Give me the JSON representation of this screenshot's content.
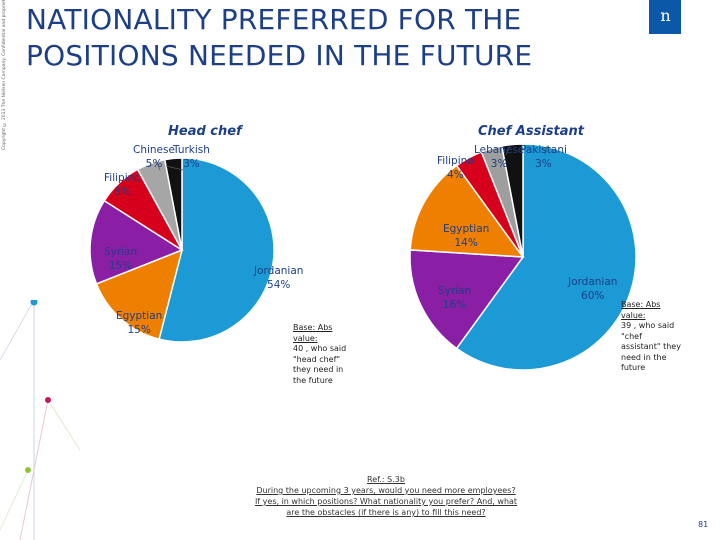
{
  "copyright": "Copyright © 2013 The Nielsen Company. Confidential and proprietary.",
  "title": {
    "line1": "NATIONALITY PREFERRED FOR THE",
    "line2": "POSITIONS NEEDED IN THE FUTURE"
  },
  "logo": {
    "text": "n"
  },
  "colors": {
    "Jordanian": "#1b9ad6",
    "Egyptian": "#ee7f00",
    "Syrian": "#8a1fa6",
    "Filipino": "#d6001c",
    "Chinese": "#a6a6a6",
    "Turkish": "#111111",
    "Lebanese": "#9e9e9e",
    "Pakistani": "#111111"
  },
  "chart_data": [
    {
      "type": "pie",
      "title": "Head chef",
      "categories": [
        "Jordanian",
        "Egyptian",
        "Syrian",
        "Filipino",
        "Chinese",
        "Turkish"
      ],
      "values": [
        54,
        15,
        15,
        8,
        5,
        3
      ],
      "labels": [
        "Jordanian 54%",
        "Egyptian 15%",
        "Syrian 15%",
        "Filipino 8%",
        "Chinese 5%",
        "Turkish 3%"
      ]
    },
    {
      "type": "pie",
      "title": "Chef Assistant",
      "categories": [
        "Jordanian",
        "Syrian",
        "Egyptian",
        "Filipino",
        "Lebanese",
        "Pakistani"
      ],
      "values": [
        60,
        16,
        14,
        4,
        3,
        3
      ],
      "labels": [
        "Jordanian 60%",
        "Syrian 16%",
        "Egyptian 14%",
        "Filipino 4%",
        "Lebanese 3%",
        "Pakistani 3%"
      ]
    }
  ],
  "labels": {
    "head_chef": {
      "jordanian": [
        "Jordanian",
        "54%"
      ],
      "egyptian": [
        "Egyptian",
        "15%"
      ],
      "syrian": [
        "Syrian",
        "15%"
      ],
      "filipino": [
        "Filipino",
        "8%"
      ],
      "chinese": [
        "Chinese",
        "5%"
      ],
      "turkish": [
        "Turkish",
        "3%"
      ]
    },
    "chef_assistant": {
      "jordanian": [
        "Jordanian",
        "60%"
      ],
      "syrian": [
        "Syrian",
        "16%"
      ],
      "egyptian": [
        "Egyptian",
        "14%"
      ],
      "filipino": [
        "Filipino",
        "4%"
      ],
      "lebanese": [
        "Lebanese",
        "3%"
      ],
      "pakistani": [
        "Pakistani",
        "3%"
      ]
    }
  },
  "base_notes": {
    "head_chef": {
      "heading": "Base: Abs",
      "heading2": "value:",
      "body": [
        "40 , who said",
        "\"head chef\"",
        "they need in",
        "the future"
      ]
    },
    "chef_assistant": {
      "heading": "Base: Abs",
      "heading2": "value:",
      "body": [
        "39 , who said",
        "\"chef",
        "assistant\" they",
        "need in the",
        "future"
      ]
    }
  },
  "reference": {
    "ref": "Ref.: S.3b",
    "question": [
      "During the upcoming 3 years, would you need more employees?",
      "If yes, in which positions? What nationality you prefer? And, what",
      "are the obstacles (if there is any) to fill this need?"
    ]
  },
  "page_number": "81"
}
